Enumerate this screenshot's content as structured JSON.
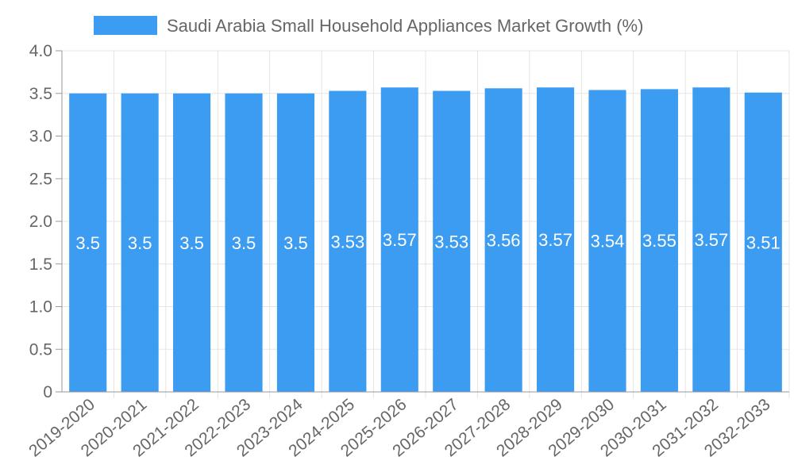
{
  "chart_data": {
    "type": "bar",
    "title": "",
    "xlabel": "",
    "ylabel": "",
    "legend": {
      "position": "top",
      "entries": [
        "Saudi Arabia Small Household Appliances Market Growth (%)"
      ]
    },
    "categories": [
      "2019-2020",
      "2020-2021",
      "2021-2022",
      "2022-2023",
      "2023-2024",
      "2024-2025",
      "2025-2026",
      "2026-2027",
      "2027-2028",
      "2028-2029",
      "2029-2030",
      "2030-2031",
      "2031-2032",
      "2032-2033"
    ],
    "series": [
      {
        "name": "Saudi Arabia Small Household Appliances Market Growth (%)",
        "values": [
          3.5,
          3.5,
          3.5,
          3.5,
          3.5,
          3.53,
          3.57,
          3.53,
          3.56,
          3.57,
          3.54,
          3.55,
          3.57,
          3.51
        ],
        "color": "#3b9cf1"
      }
    ],
    "ylim": [
      0,
      4.0
    ],
    "y_ticks": [
      "0",
      "0.5",
      "1.0",
      "1.5",
      "2.0",
      "2.5",
      "3.0",
      "3.5",
      "4.0"
    ],
    "grid": true
  }
}
